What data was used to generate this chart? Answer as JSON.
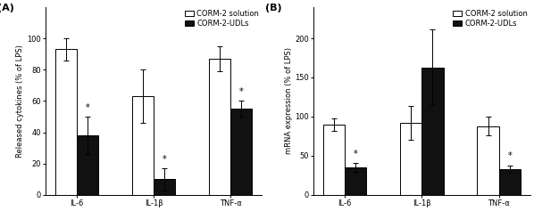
{
  "panel_A": {
    "label": "(A)",
    "categories": [
      "IL-6",
      "IL-1β",
      "TNF-α"
    ],
    "white_bars": [
      93,
      63,
      87
    ],
    "black_bars": [
      38,
      10,
      55
    ],
    "white_errors": [
      7,
      17,
      8
    ],
    "black_errors": [
      12,
      7,
      5
    ],
    "ylabel": "Released cytokines (% of LPS)",
    "ylim": [
      0,
      120
    ],
    "yticks": [
      0,
      20,
      40,
      60,
      80,
      100
    ],
    "asterisk_black": [
      true,
      true,
      true
    ]
  },
  "panel_B": {
    "label": "(B)",
    "categories": [
      "IL-6",
      "IL-1β",
      "TNF-α"
    ],
    "white_bars": [
      90,
      92,
      88
    ],
    "black_bars": [
      35,
      163,
      33
    ],
    "white_errors": [
      8,
      22,
      12
    ],
    "black_errors": [
      6,
      48,
      5
    ],
    "ylabel": "mRNA expression (% of LPS)",
    "ylim": [
      0,
      240
    ],
    "yticks": [
      0,
      50,
      100,
      150,
      200
    ],
    "asterisk_black": [
      true,
      false,
      true
    ]
  },
  "legend_labels": [
    "CORM-2 solution",
    "CORM-2-UDLs"
  ],
  "bar_width": 0.28,
  "white_color": "#ffffff",
  "black_color": "#111111",
  "edge_color": "#000000",
  "fontsize_label": 6.0,
  "fontsize_tick": 6.0,
  "fontsize_legend": 6.0,
  "fontsize_panel": 8.0,
  "fontsize_asterisk": 7.0
}
